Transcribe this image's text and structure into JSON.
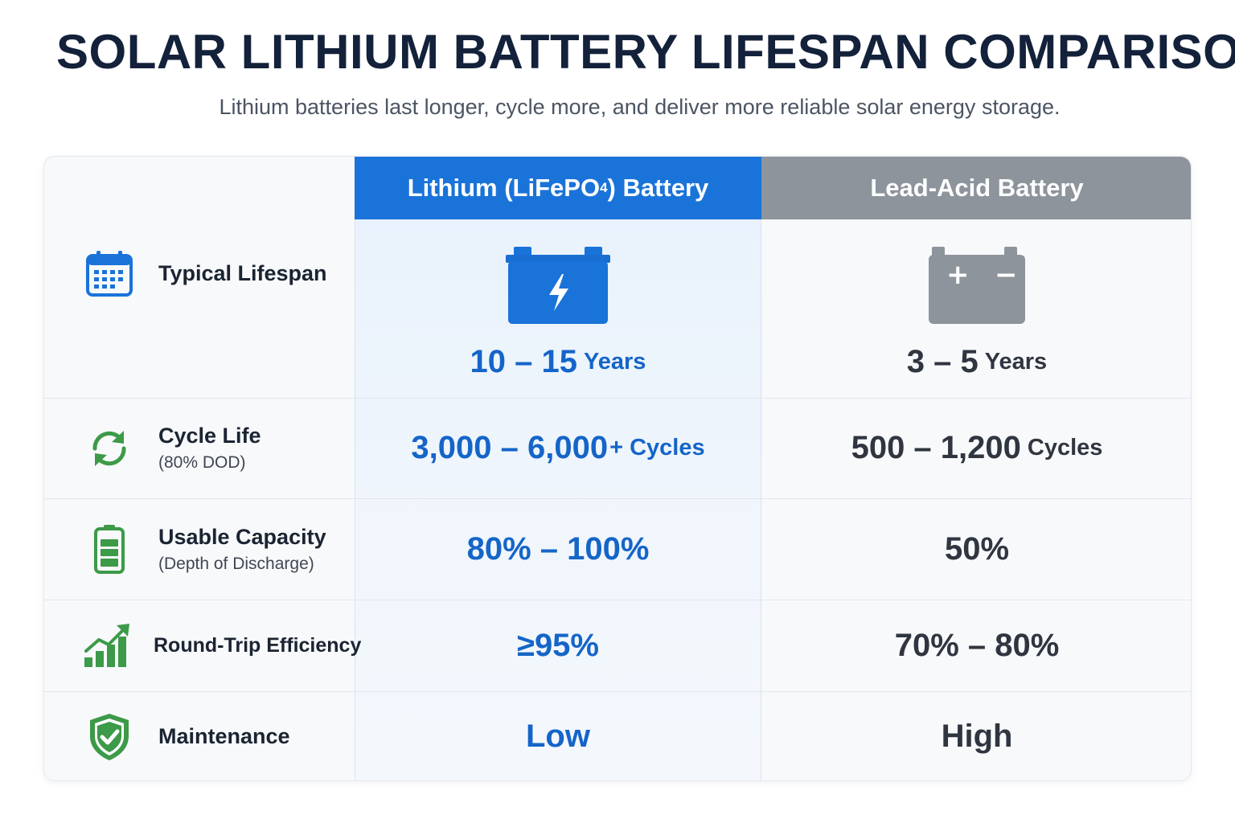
{
  "title": "SOLAR LITHIUM BATTERY LIFESPAN COMPARISON",
  "subtitle": "Lithium batteries last longer, cycle more, and deliver more reliable solar energy storage.",
  "columns": {
    "lithium": {
      "label_prefix": "Lithium (LiFePO",
      "label_sub": "4",
      "label_suffix": ") Battery",
      "color": "#1a73d9"
    },
    "lead_acid": {
      "label": "Lead-Acid Battery",
      "color": "#8e949c"
    }
  },
  "rows": [
    {
      "label": "Typical Lifespan",
      "sublabel": "",
      "icon": "calendar-icon",
      "lithium": {
        "value": "10 – 15",
        "unit": "Years"
      },
      "lead_acid": {
        "value": "3 – 5",
        "unit": "Years"
      }
    },
    {
      "label": "Cycle Life",
      "sublabel": "(80% DOD)",
      "icon": "cycle-arrows-icon",
      "lithium": {
        "value": "3,000 – 6,000",
        "unit": "+ Cycles"
      },
      "lead_acid": {
        "value": "500 – 1,200",
        "unit": "Cycles"
      }
    },
    {
      "label": "Usable Capacity",
      "sublabel": "(Depth of Discharge)",
      "icon": "battery-level-icon",
      "lithium": {
        "value": "80% – 100%"
      },
      "lead_acid": {
        "value": "50%"
      }
    },
    {
      "label": "Round-Trip Efficiency",
      "sublabel": "",
      "icon": "growth-chart-icon",
      "lithium": {
        "value": "≥95%"
      },
      "lead_acid": {
        "value": "70% – 80%"
      }
    },
    {
      "label": "Maintenance",
      "sublabel": "",
      "icon": "shield-check-icon",
      "lithium": {
        "value": "Low"
      },
      "lead_acid": {
        "value": "High"
      }
    }
  ],
  "lifespan_icons": {
    "lithium": {
      "icon": "lightning-battery-icon",
      "plus": "",
      "minus": ""
    },
    "lead_acid": {
      "icon": "plus-minus-battery-icon",
      "plus": "+",
      "minus": "−"
    }
  },
  "colors": {
    "accent_blue": "#1565c8",
    "accent_green": "#3c9a48",
    "gray": "#8e949c"
  }
}
